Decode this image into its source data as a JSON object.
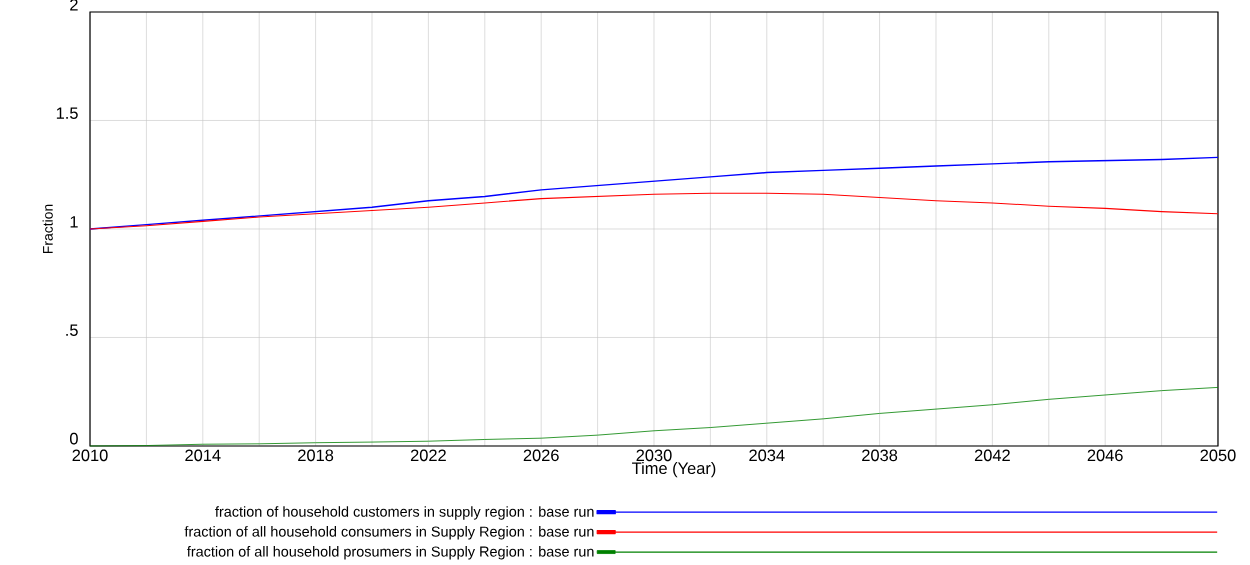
{
  "chart_data": {
    "type": "line",
    "xlabel": "Time (Year)",
    "ylabel": "Fraction",
    "x": [
      2010,
      2012,
      2014,
      2016,
      2018,
      2020,
      2022,
      2024,
      2026,
      2028,
      2030,
      2032,
      2034,
      2036,
      2038,
      2040,
      2042,
      2044,
      2046,
      2048,
      2050
    ],
    "series": [
      {
        "name": "fraction of household customers in supply region : base run",
        "color": "#0000ff",
        "values": [
          1.0,
          1.02,
          1.04,
          1.06,
          1.08,
          1.1,
          1.13,
          1.15,
          1.18,
          1.2,
          1.22,
          1.24,
          1.26,
          1.27,
          1.28,
          1.29,
          1.3,
          1.31,
          1.315,
          1.32,
          1.33
        ]
      },
      {
        "name": "fraction of all household consumers in Supply Region : base run",
        "color": "#ff0000",
        "values": [
          1.0,
          1.015,
          1.035,
          1.055,
          1.07,
          1.085,
          1.1,
          1.12,
          1.14,
          1.15,
          1.16,
          1.165,
          1.165,
          1.16,
          1.145,
          1.13,
          1.12,
          1.105,
          1.095,
          1.08,
          1.07
        ]
      },
      {
        "name": "fraction of all household prosumers in Supply Region : base run",
        "color": "#008000",
        "values": [
          0,
          0.002,
          0.008,
          0.01,
          0.015,
          0.018,
          0.022,
          0.03,
          0.036,
          0.05,
          0.07,
          0.085,
          0.105,
          0.125,
          0.15,
          0.17,
          0.19,
          0.215,
          0.235,
          0.255,
          0.27
        ]
      }
    ],
    "xlim": [
      2010,
      2050
    ],
    "xticks": [
      2010,
      {
        "value": 2012,
        "label": null
      },
      2014,
      {
        "value": 2016,
        "label": null
      },
      2018,
      {
        "value": 2020,
        "label": null
      },
      2022,
      {
        "value": 2024,
        "label": null
      },
      2026,
      {
        "value": 2028,
        "label": null
      },
      2030,
      {
        "value": 2032,
        "label": null
      },
      2034,
      {
        "value": 2036,
        "label": null
      },
      2038,
      {
        "value": 2040,
        "label": null
      },
      2042,
      {
        "value": 2044,
        "label": null
      },
      2046,
      {
        "value": 2048,
        "label": null
      },
      2050
    ],
    "ylim": [
      0,
      2
    ],
    "yticks": [
      0,
      {
        "value": 0.5,
        "label": ".5"
      },
      1,
      1.5,
      2
    ],
    "grid": true,
    "legend": "bottom",
    "marker": "none",
    "line_style": "solid"
  }
}
